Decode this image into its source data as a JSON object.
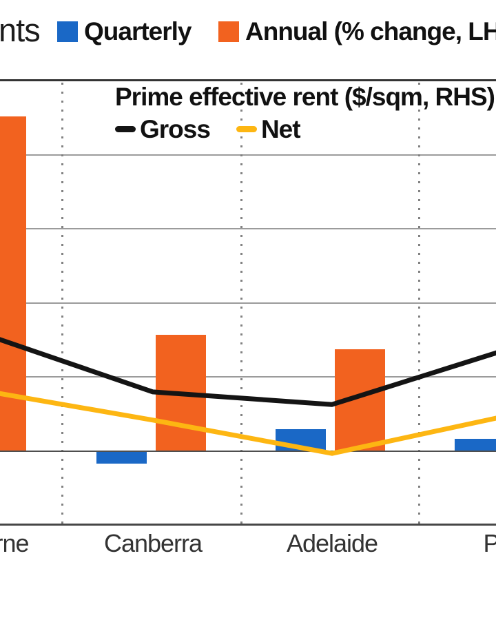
{
  "header": {
    "title_fragment": "nts",
    "legend": [
      {
        "label": "Quarterly",
        "color": "#1a68c6"
      },
      {
        "label": "Annual (% change, LHS)",
        "color": "#f2621f"
      }
    ]
  },
  "inner_legend": {
    "title": "Prime effective rent ($/sqm, RHS)",
    "series": [
      {
        "label": "Gross",
        "color": "#141414"
      },
      {
        "label": "Net",
        "color": "#fdb612"
      }
    ]
  },
  "chart_data": {
    "type": "bar",
    "note": "Chart is cropped: left/right axis tick labels are not visible; bar and line values are expressed in gridline units above the zero line (1 unit = one horizontal gridline step).",
    "categories": [
      "Melbourne",
      "Canberra",
      "Adelaide",
      "Perth"
    ],
    "series": [
      {
        "name": "Quarterly",
        "kind": "bar",
        "color": "#1a68c6",
        "values": [
          null,
          -0.17,
          0.3,
          0.17
        ]
      },
      {
        "name": "Annual (% change, LHS)",
        "kind": "bar",
        "color": "#f2621f",
        "values": [
          4.52,
          1.57,
          1.38,
          null
        ]
      },
      {
        "name": "Gross",
        "kind": "line",
        "color": "#141414",
        "values": [
          1.63,
          0.8,
          0.63,
          1.39
        ]
      },
      {
        "name": "Net",
        "kind": "line",
        "color": "#fdb612",
        "values": [
          0.84,
          0.42,
          -0.03,
          0.49
        ]
      }
    ],
    "ylim": [
      -1,
      5
    ],
    "gridline_units": [
      0,
      1,
      2,
      3,
      4
    ],
    "grid": "on",
    "legend_position": "top-and-inside"
  }
}
